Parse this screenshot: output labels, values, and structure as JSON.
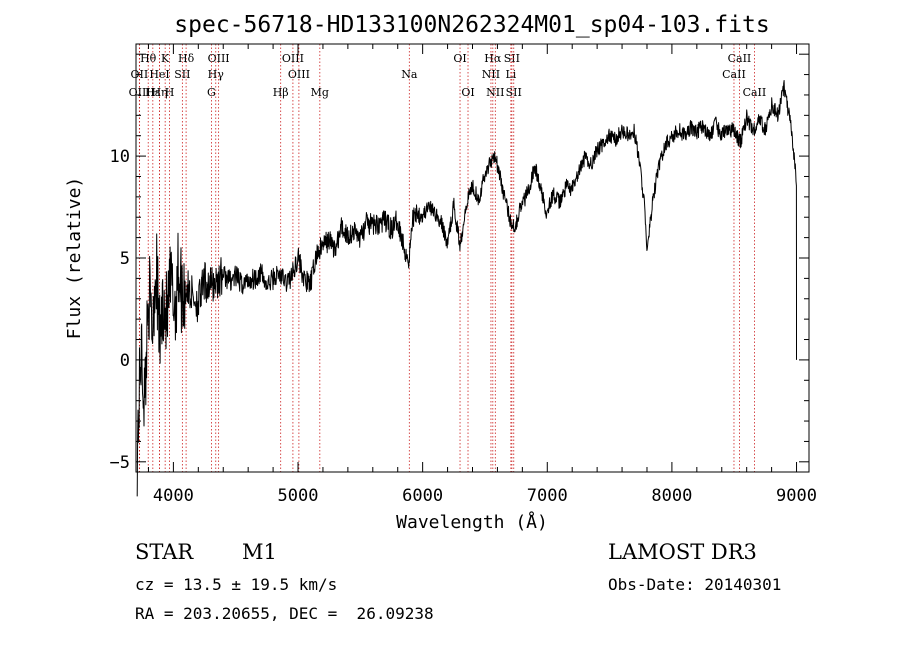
{
  "chart_data": {
    "type": "line",
    "title": "spec-56718-HD133100N262324M01_sp04-103.fits",
    "xlabel": "Wavelength (Å)",
    "ylabel": "Flux (relative)",
    "xlim": [
      3700,
      9100
    ],
    "ylim": [
      -5.5,
      15.5
    ],
    "x_ticks": [
      4000,
      5000,
      6000,
      7000,
      8000,
      9000
    ],
    "y_ticks": [
      -5,
      0,
      5,
      10
    ],
    "grid": false,
    "series": [
      {
        "name": "spectrum",
        "x": [
          3710,
          3740,
          3770,
          3800,
          3830,
          3860,
          3890,
          3920,
          3950,
          3980,
          4010,
          4040,
          4070,
          4100,
          4150,
          4200,
          4250,
          4300,
          4350,
          4400,
          4450,
          4500,
          4550,
          4600,
          4650,
          4700,
          4750,
          4800,
          4850,
          4900,
          4950,
          5000,
          5050,
          5100,
          5150,
          5200,
          5250,
          5300,
          5350,
          5400,
          5450,
          5500,
          5550,
          5600,
          5650,
          5700,
          5750,
          5800,
          5850,
          5890,
          5920,
          5950,
          6000,
          6050,
          6100,
          6150,
          6200,
          6250,
          6300,
          6350,
          6400,
          6450,
          6500,
          6550,
          6580,
          6620,
          6660,
          6700,
          6740,
          6780,
          6820,
          6860,
          6900,
          6950,
          6990,
          7050,
          7100,
          7150,
          7200,
          7250,
          7300,
          7350,
          7400,
          7450,
          7500,
          7550,
          7600,
          7650,
          7700,
          7750,
          7780,
          7800,
          7850,
          7900,
          7950,
          8000,
          8050,
          8100,
          8150,
          8200,
          8250,
          8300,
          8350,
          8400,
          8450,
          8500,
          8550,
          8600,
          8650,
          8700,
          8750,
          8800,
          8850,
          8900,
          8950,
          8980,
          9000
        ],
        "y": [
          -4.5,
          0.5,
          -2.0,
          3.5,
          1.5,
          4.8,
          1.0,
          3.0,
          2.0,
          3.8,
          2.5,
          4.5,
          3.2,
          3.5,
          3.2,
          2.8,
          3.8,
          3.6,
          3.9,
          4.2,
          3.9,
          4.1,
          3.7,
          3.9,
          4.0,
          4.3,
          3.6,
          4.0,
          4.2,
          3.8,
          4.1,
          5.1,
          3.9,
          3.7,
          5.2,
          5.6,
          5.9,
          5.4,
          6.5,
          6.1,
          6.3,
          6.0,
          6.7,
          6.6,
          6.7,
          6.8,
          6.4,
          6.9,
          5.5,
          4.9,
          6.9,
          7.3,
          7.1,
          7.5,
          7.2,
          6.7,
          5.7,
          7.6,
          5.6,
          7.7,
          8.6,
          7.9,
          9.1,
          9.8,
          10.1,
          9.0,
          7.9,
          6.9,
          6.5,
          7.4,
          7.9,
          8.6,
          9.5,
          8.3,
          7.3,
          8.1,
          7.7,
          8.5,
          8.4,
          9.1,
          9.9,
          9.6,
          10.3,
          10.6,
          11.0,
          10.8,
          11.3,
          11.0,
          11.2,
          9.2,
          7.6,
          5.2,
          8.0,
          9.6,
          10.6,
          10.9,
          11.3,
          11.0,
          11.4,
          11.2,
          11.5,
          10.9,
          11.6,
          11.0,
          11.4,
          11.2,
          10.7,
          11.9,
          11.2,
          11.8,
          11.3,
          12.5,
          12.0,
          13.4,
          11.6,
          10.0,
          8.5
        ]
      }
    ],
    "line_markers": [
      {
        "line": "Hθ",
        "wave": 3798,
        "row": 1
      },
      {
        "line": "OII",
        "wave": 3727,
        "row": 2
      },
      {
        "line": "OIII",
        "wave": 3729,
        "row": 3
      },
      {
        "line": "Hε",
        "wave": 3835,
        "row": 3
      },
      {
        "line": "K",
        "wave": 3934,
        "row": 1
      },
      {
        "line": "HeI",
        "wave": 3889,
        "row": 2
      },
      {
        "line": "Hη",
        "wave": 3889,
        "row": 3
      },
      {
        "line": "H",
        "wave": 3969,
        "row": 3
      },
      {
        "line": "Hδ",
        "wave": 4102,
        "row": 1
      },
      {
        "line": "SII",
        "wave": 4072,
        "row": 2
      },
      {
        "line": "OIII",
        "wave": 4363,
        "row": 1
      },
      {
        "line": "Hγ",
        "wave": 4340,
        "row": 2
      },
      {
        "line": "G",
        "wave": 4305,
        "row": 3
      },
      {
        "line": "Hβ",
        "wave": 4861,
        "row": 3
      },
      {
        "line": "OIII",
        "wave": 4959,
        "row": 1
      },
      {
        "line": "OIII",
        "wave": 5007,
        "row": 2
      },
      {
        "line": "Mg",
        "wave": 5175,
        "row": 3
      },
      {
        "line": "Na",
        "wave": 5893,
        "row": 2
      },
      {
        "line": "OI",
        "wave": 6300,
        "row": 1
      },
      {
        "line": "OI",
        "wave": 6364,
        "row": 3
      },
      {
        "line": "Hα",
        "wave": 6563,
        "row": 1
      },
      {
        "line": "NII",
        "wave": 6548,
        "row": 2
      },
      {
        "line": "NII",
        "wave": 6583,
        "row": 3
      },
      {
        "line": "SII",
        "wave": 6716,
        "row": 1
      },
      {
        "line": "Li",
        "wave": 6708,
        "row": 2
      },
      {
        "line": "SII",
        "wave": 6731,
        "row": 3
      },
      {
        "line": "CaII",
        "wave": 8542,
        "row": 1
      },
      {
        "line": "CaII",
        "wave": 8498,
        "row": 2
      },
      {
        "line": "CaII",
        "wave": 8662,
        "row": 3
      }
    ]
  },
  "info": {
    "object_class": "STAR",
    "subclass": "M1",
    "survey": "LAMOST DR3",
    "redshift": "cz = 13.5 ± 19.5 km/s",
    "obs_date": "Obs-Date: 20140301",
    "coords": "RA = 203.20655, DEC =  26.09238"
  }
}
